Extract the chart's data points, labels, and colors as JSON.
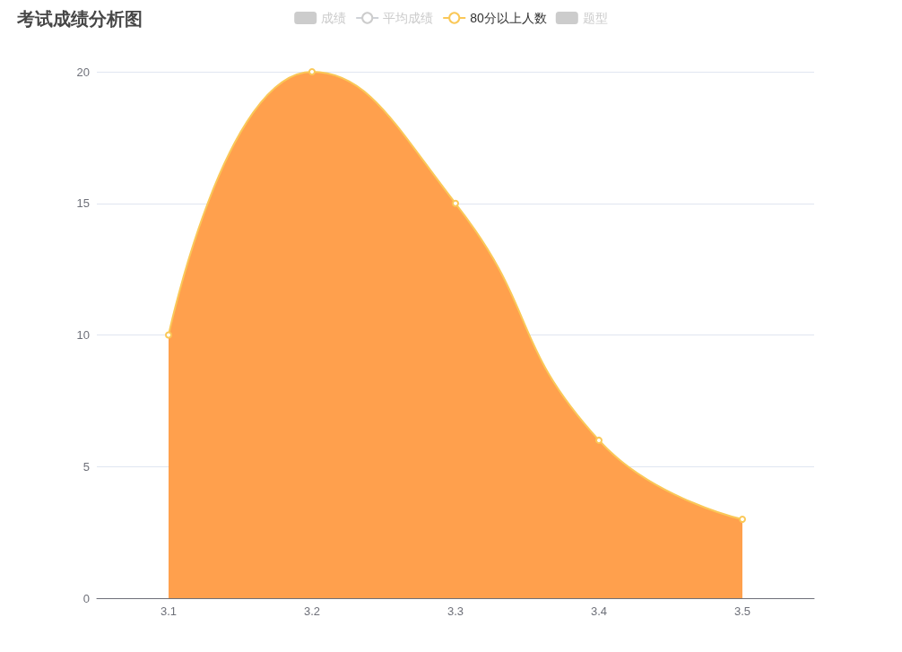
{
  "chart_data": {
    "type": "area",
    "title": "考试成绩分析图",
    "categories": [
      "3.1",
      "3.2",
      "3.3",
      "3.4",
      "3.5"
    ],
    "series": [
      {
        "name": "成绩",
        "type": "bar",
        "color": "#cccccc",
        "values": [
          null,
          null,
          null,
          null,
          null
        ]
      },
      {
        "name": "平均成绩",
        "type": "line",
        "color": "#cccccc",
        "values": [
          null,
          null,
          null,
          null,
          null
        ]
      },
      {
        "name": "80分以上人数",
        "color": "#fac858",
        "values": [
          10,
          20,
          15,
          6,
          3
        ]
      },
      {
        "name": "题型",
        "type": "bar",
        "color": "#cccccc",
        "values": [
          null,
          null,
          null,
          null,
          null
        ]
      }
    ],
    "ylim": [
      0,
      20
    ],
    "yticks": [
      0,
      5,
      10,
      15,
      20
    ],
    "grid": "y",
    "legend": "top",
    "marker": "circle"
  }
}
